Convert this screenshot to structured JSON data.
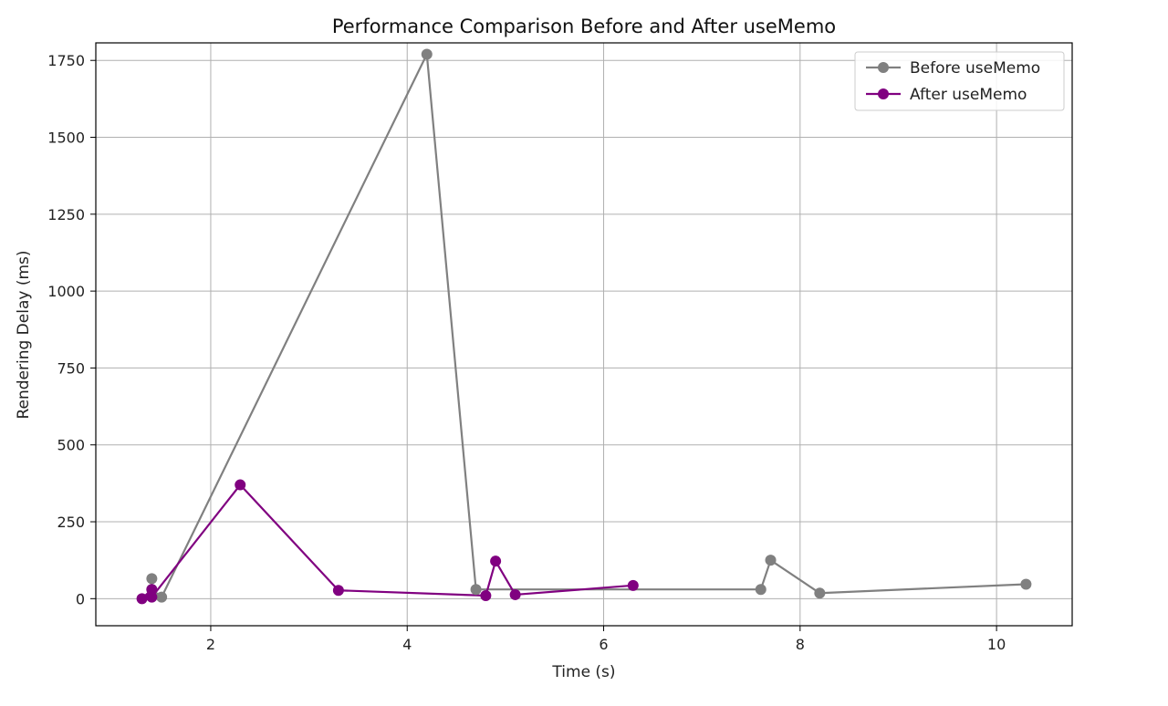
{
  "chart_data": {
    "type": "line",
    "title": "Performance Comparison Before and After useMemo",
    "xlabel": "Time (s)",
    "ylabel": "Rendering Delay (ms)",
    "xlim": [
      0.83,
      10.77
    ],
    "ylim": [
      -88,
      1807
    ],
    "xticks": [
      2,
      4,
      6,
      8,
      10
    ],
    "yticks": [
      0,
      250,
      500,
      750,
      1000,
      1250,
      1500,
      1750
    ],
    "grid": true,
    "legend_position": "top-right",
    "series": [
      {
        "name": "Before useMemo",
        "color": "#808080",
        "x": [
          1.4,
          1.4,
          1.5,
          4.2,
          4.7,
          7.6,
          7.7,
          8.2,
          10.3
        ],
        "y": [
          65,
          30,
          5,
          1770,
          30,
          30,
          125,
          18,
          47
        ]
      },
      {
        "name": "After useMemo",
        "color": "#800080",
        "x": [
          1.3,
          1.4,
          1.4,
          2.3,
          3.3,
          4.8,
          4.9,
          5.1,
          6.3
        ],
        "y": [
          0,
          30,
          5,
          370,
          27,
          10,
          122,
          13,
          43
        ]
      }
    ]
  }
}
